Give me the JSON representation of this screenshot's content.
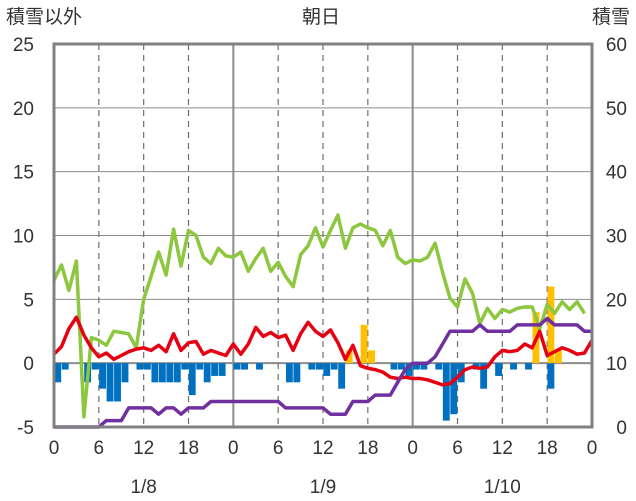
{
  "chart_data": {
    "type": "combo",
    "title": "朝日",
    "left_axis_label": "積雪以外",
    "right_axis_label": "積雪",
    "left_ylim": [
      -5,
      25
    ],
    "right_ylim": [
      0,
      60
    ],
    "left_ticks": [
      "25",
      "20",
      "15",
      "10",
      "5",
      "0",
      "-5"
    ],
    "right_ticks": [
      "60",
      "50",
      "40",
      "30",
      "20",
      "10",
      "0"
    ],
    "x_range_hours": [
      0,
      72
    ],
    "hour_ticks": [
      "0",
      "6",
      "12",
      "18",
      "0",
      "6",
      "12",
      "18",
      "0",
      "6",
      "12",
      "18",
      "0"
    ],
    "date_labels": [
      "1/8",
      "1/9",
      "1/10"
    ],
    "grid": "dashed vertical every 6h, solid at day boundaries, horizontal major lines",
    "colors": {
      "green": "#8DC63F",
      "red": "#E60012",
      "purple": "#7030A0",
      "blue": "#0070C0",
      "orange": "#FFC000",
      "grid": "#8c8c8c",
      "frame": "#808080"
    },
    "series": [
      {
        "color": "#8DC63F",
        "axis": "left",
        "type": "line",
        "x": [
          0,
          1,
          2,
          3,
          4,
          5,
          6,
          7,
          8,
          9,
          10,
          11,
          12,
          13,
          14,
          15,
          16,
          17,
          18,
          19,
          20,
          21,
          22,
          23,
          24,
          25,
          26,
          27,
          28,
          29,
          30,
          31,
          32,
          33,
          34,
          35,
          36,
          37,
          38,
          39,
          40,
          41,
          42,
          43,
          44,
          45,
          46,
          47,
          48,
          49,
          50,
          51,
          52,
          53,
          54,
          55,
          56,
          57,
          58,
          59,
          60,
          61,
          62,
          63,
          64,
          65,
          66,
          67,
          68,
          69,
          70,
          71
        ],
        "values": [
          6.5,
          7.7,
          5.7,
          8.0,
          -4.2,
          2.0,
          1.8,
          1.4,
          2.5,
          2.4,
          2.3,
          1.2,
          5.0,
          6.8,
          8.7,
          6.9,
          10.5,
          7.6,
          10.4,
          10.0,
          8.3,
          7.8,
          9.0,
          8.4,
          8.3,
          8.7,
          7.2,
          8.2,
          9.0,
          7.2,
          7.9,
          6.8,
          6.0,
          8.5,
          9.2,
          10.6,
          9.1,
          10.4,
          11.6,
          9.0,
          10.6,
          10.9,
          10.6,
          10.4,
          9.2,
          10.4,
          8.3,
          7.8,
          8.1,
          8.0,
          8.3,
          9.4,
          7.1,
          5.1,
          4.4,
          6.6,
          5.5,
          3.1,
          4.3,
          3.5,
          4.2,
          4.0,
          4.3,
          4.4,
          4.4,
          2.7,
          4.6,
          3.9,
          4.8,
          4.2,
          4.8,
          3.9
        ]
      },
      {
        "color": "#E60012",
        "axis": "left",
        "type": "line",
        "x": [
          0,
          1,
          2,
          3,
          4,
          5,
          6,
          7,
          8,
          9,
          10,
          11,
          12,
          13,
          14,
          15,
          16,
          17,
          18,
          19,
          20,
          21,
          22,
          23,
          24,
          25,
          26,
          27,
          28,
          29,
          30,
          31,
          32,
          33,
          34,
          35,
          36,
          37,
          38,
          39,
          40,
          41,
          42,
          43,
          44,
          45,
          46,
          47,
          48,
          49,
          50,
          51,
          52,
          53,
          54,
          55,
          56,
          57,
          58,
          59,
          60,
          61,
          62,
          63,
          64,
          65,
          66,
          67,
          68,
          69,
          70,
          71,
          72
        ],
        "values": [
          0.7,
          1.3,
          2.7,
          3.6,
          2.2,
          1.2,
          0.5,
          0.8,
          0.3,
          0.6,
          0.9,
          1.1,
          1.2,
          1.0,
          1.4,
          0.9,
          2.3,
          1.0,
          1.6,
          1.7,
          0.7,
          1.0,
          0.8,
          0.6,
          1.5,
          0.7,
          1.5,
          2.8,
          2.1,
          2.4,
          2.0,
          2.2,
          1.0,
          2.3,
          3.2,
          2.5,
          2.1,
          2.6,
          1.6,
          0.3,
          1.4,
          -0.2,
          -0.4,
          -0.5,
          -0.7,
          -1.1,
          -1.2,
          -1.1,
          -1.2,
          -1.2,
          -1.3,
          -1.5,
          -1.7,
          -1.6,
          -1.1,
          -0.5,
          -0.3,
          -0.4,
          -0.3,
          0.5,
          1.0,
          0.9,
          1.0,
          1.5,
          1.2,
          2.5,
          0.6,
          0.9,
          1.2,
          1.0,
          0.7,
          0.8,
          1.8
        ]
      },
      {
        "color": "#7030A0",
        "axis": "right",
        "type": "line",
        "x": [
          0,
          1,
          2,
          3,
          4,
          5,
          6,
          7,
          8,
          9,
          10,
          11,
          12,
          13,
          14,
          15,
          16,
          17,
          18,
          19,
          20,
          21,
          22,
          23,
          24,
          25,
          26,
          27,
          28,
          29,
          30,
          31,
          32,
          33,
          34,
          35,
          36,
          37,
          38,
          39,
          40,
          41,
          42,
          43,
          44,
          45,
          46,
          47,
          48,
          49,
          50,
          51,
          52,
          53,
          54,
          55,
          56,
          57,
          58,
          59,
          60,
          61,
          62,
          63,
          64,
          65,
          66,
          67,
          68,
          69,
          70,
          71,
          72
        ],
        "values": [
          0,
          0,
          0,
          0,
          0,
          0,
          0,
          1,
          1,
          1,
          3,
          3,
          3,
          3,
          2,
          3,
          3,
          2,
          3,
          3,
          3,
          4,
          4,
          4,
          4,
          4,
          4,
          4,
          4,
          4,
          4,
          3,
          3,
          3,
          3,
          3,
          3,
          2,
          2,
          2,
          4,
          4,
          4,
          5,
          5,
          5,
          7,
          9,
          10,
          10,
          10,
          11,
          13,
          15,
          15,
          15,
          15,
          16,
          15,
          15,
          15,
          15,
          16,
          16,
          16,
          16,
          17,
          16,
          16,
          16,
          16,
          15,
          15
        ]
      },
      {
        "color": "#0070C0",
        "axis": "left",
        "type": "bar",
        "x": [
          0,
          1,
          2,
          3,
          4,
          5,
          6,
          7,
          8,
          9,
          10,
          11,
          12,
          13,
          14,
          15,
          16,
          17,
          18,
          19,
          20,
          21,
          22,
          23,
          24,
          25,
          26,
          27,
          28,
          29,
          30,
          31,
          32,
          33,
          34,
          35,
          36,
          37,
          38,
          39,
          40,
          41,
          42,
          43,
          44,
          45,
          46,
          47,
          48,
          49,
          50,
          51,
          52,
          53,
          54,
          55,
          56,
          57,
          58,
          59,
          60,
          61,
          62,
          63,
          64,
          65,
          66,
          67,
          68,
          69,
          70,
          71
        ],
        "values": [
          -1.5,
          -0.5,
          0,
          0,
          -1.5,
          -0.5,
          -2,
          -3,
          -3,
          -1.5,
          0,
          -0.5,
          -0.5,
          -1.5,
          -1.5,
          -1.5,
          -1.5,
          -0.5,
          -2.5,
          -0.5,
          -1.5,
          -1,
          -1,
          0,
          -0.5,
          -0.5,
          0,
          -0.5,
          0,
          0,
          0,
          -1.5,
          -1.5,
          0,
          -0.5,
          -0.5,
          -1,
          -0.5,
          -2,
          0,
          0,
          0,
          0,
          0,
          0,
          -0.5,
          -0.5,
          -1,
          -0.5,
          -0.5,
          0,
          -0.5,
          -4.5,
          -4,
          -1.5,
          0,
          -0.5,
          -2,
          0,
          -1,
          0,
          -0.5,
          0,
          -0.5,
          0,
          0,
          -2,
          0,
          0,
          0,
          0,
          0
        ]
      },
      {
        "color": "#FFC000",
        "axis": "left",
        "type": "bar",
        "x": [
          0,
          1,
          2,
          3,
          4,
          5,
          6,
          7,
          8,
          9,
          10,
          11,
          12,
          13,
          14,
          15,
          16,
          17,
          18,
          19,
          20,
          21,
          22,
          23,
          24,
          25,
          26,
          27,
          28,
          29,
          30,
          31,
          32,
          33,
          34,
          35,
          36,
          37,
          38,
          39,
          40,
          41,
          42,
          43,
          44,
          45,
          46,
          47,
          48,
          49,
          50,
          51,
          52,
          53,
          54,
          55,
          56,
          57,
          58,
          59,
          60,
          61,
          62,
          63,
          64,
          65,
          66,
          67,
          68,
          69,
          70,
          71
        ],
        "values": [
          0,
          0,
          0,
          0,
          0,
          0,
          0,
          0,
          0,
          0,
          0,
          0,
          0,
          0,
          0,
          0,
          0,
          0,
          0,
          0,
          0,
          0,
          0,
          0,
          0,
          0,
          0,
          0,
          0,
          0,
          0,
          0,
          0,
          0,
          0,
          0,
          0,
          0,
          0,
          1,
          0,
          3,
          1,
          0,
          0,
          0,
          0,
          0,
          0,
          0,
          0,
          0,
          0,
          0,
          0,
          0,
          0,
          0,
          0,
          0,
          0,
          0,
          0,
          0,
          4,
          0,
          6,
          1,
          0,
          0,
          0,
          0
        ]
      }
    ]
  }
}
